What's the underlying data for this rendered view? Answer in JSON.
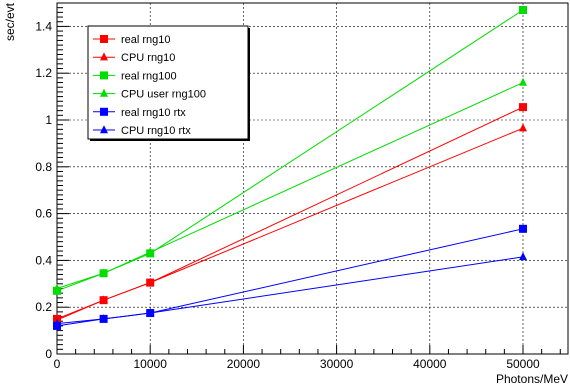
{
  "chart_data": {
    "type": "line",
    "xlabel": "Photons/MeV",
    "ylabel": "sec/evt",
    "xlim": [
      0,
      55000
    ],
    "ylim": [
      0,
      1.5
    ],
    "grid": true,
    "legend_position": "top-left",
    "x_ticks": [
      0,
      10000,
      20000,
      30000,
      40000,
      50000
    ],
    "y_ticks": [
      0,
      0.2,
      0.4,
      0.6,
      0.8,
      1,
      1.2,
      1.4
    ],
    "series": [
      {
        "name": "real rng10",
        "color": "#ff0000",
        "marker": "square",
        "x": [
          0,
          5000,
          10000,
          50000
        ],
        "y": [
          0.15,
          0.23,
          0.305,
          1.055
        ]
      },
      {
        "name": "CPU  rng10",
        "color": "#ff0000",
        "marker": "triangle",
        "x": [
          0,
          5000,
          10000,
          50000
        ],
        "y": [
          0.145,
          0.23,
          0.305,
          0.965
        ]
      },
      {
        "name": "real rng100",
        "color": "#00dd00",
        "marker": "square",
        "x": [
          0,
          5000,
          10000,
          50000
        ],
        "y": [
          0.27,
          0.345,
          0.43,
          1.47
        ]
      },
      {
        "name": "CPU user rng100",
        "color": "#00dd00",
        "marker": "triangle",
        "x": [
          0,
          5000,
          10000,
          50000
        ],
        "y": [
          0.28,
          0.345,
          0.435,
          1.16
        ]
      },
      {
        "name": "real rng10 rtx",
        "color": "#0000ff",
        "marker": "square",
        "x": [
          0,
          5000,
          10000,
          50000
        ],
        "y": [
          0.12,
          0.15,
          0.175,
          0.535
        ]
      },
      {
        "name": "CPU rng10 rtx",
        "color": "#0000ff",
        "marker": "triangle",
        "x": [
          0,
          5000,
          10000,
          50000
        ],
        "y": [
          0.13,
          0.15,
          0.175,
          0.415
        ]
      }
    ]
  }
}
